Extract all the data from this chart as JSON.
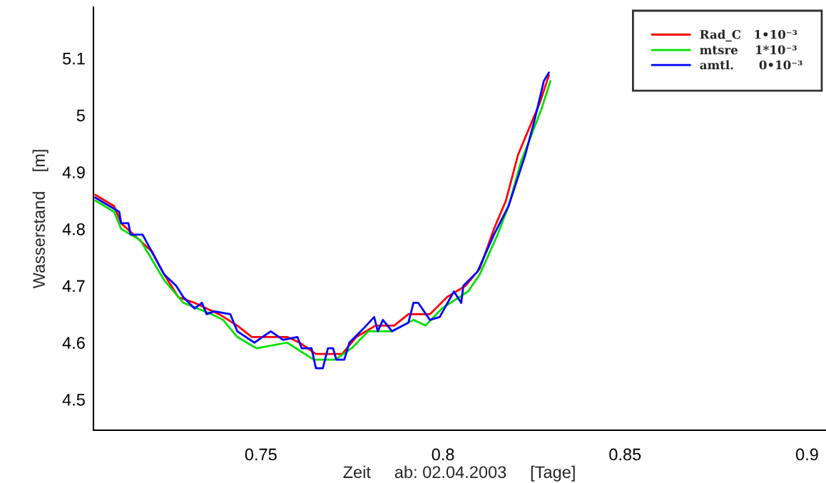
{
  "chart_data": {
    "type": "line",
    "xlabel": "Zeit     ab: 02.04.2003     [Tage]",
    "ylabel": "Wasserstand    [m]",
    "xlim": [
      0.704,
      0.905
    ],
    "ylim": [
      4.446,
      5.19
    ],
    "xticks": [
      0.75,
      0.8,
      0.85,
      0.9
    ],
    "yticks": [
      4.5,
      4.6,
      4.7,
      4.8,
      4.9,
      5,
      5.1
    ],
    "grid": false,
    "legend": "top right",
    "marker": "none",
    "line_style": "solid",
    "series": [
      {
        "name": "Rad_C   1•10⁻³",
        "color": "#ff0000",
        "x": [
          0.7045,
          0.7097,
          0.7116,
          0.7201,
          0.7234,
          0.7273,
          0.7318,
          0.7385,
          0.7435,
          0.7475,
          0.7572,
          0.7606,
          0.7651,
          0.7723,
          0.7762,
          0.7815,
          0.7866,
          0.7905,
          0.7964,
          0.8011,
          0.8062,
          0.8101,
          0.814,
          0.8173,
          0.8206,
          0.8232,
          0.8265,
          0.8291
        ],
        "values": [
          4.86,
          4.84,
          4.81,
          4.76,
          4.72,
          4.68,
          4.67,
          4.65,
          4.63,
          4.61,
          4.61,
          4.6,
          4.58,
          4.58,
          4.61,
          4.63,
          4.63,
          4.65,
          4.65,
          4.68,
          4.7,
          4.73,
          4.8,
          4.85,
          4.93,
          4.97,
          5.02,
          5.07
        ]
      },
      {
        "name": "mtsre    1*10⁻³",
        "color": "#00e000",
        "x": [
          0.7045,
          0.7097,
          0.7116,
          0.7169,
          0.7234,
          0.7287,
          0.7365,
          0.7396,
          0.7435,
          0.7488,
          0.7572,
          0.7645,
          0.7704,
          0.7749,
          0.7795,
          0.786,
          0.7919,
          0.7952,
          0.7997,
          0.8069,
          0.8101,
          0.815,
          0.818,
          0.8215,
          0.824,
          0.827,
          0.8295
        ],
        "values": [
          4.85,
          4.83,
          4.8,
          4.78,
          4.71,
          4.67,
          4.65,
          4.64,
          4.61,
          4.59,
          4.6,
          4.57,
          4.57,
          4.59,
          4.62,
          4.62,
          4.64,
          4.63,
          4.66,
          4.69,
          4.72,
          4.79,
          4.84,
          4.92,
          4.96,
          5.01,
          5.06
        ]
      },
      {
        "name": "amtl.      0•10⁻³",
        "color": "#0000ff",
        "x": [
          0.7045,
          0.7111,
          0.7116,
          0.7136,
          0.7142,
          0.7175,
          0.7234,
          0.7267,
          0.7287,
          0.7318,
          0.7338,
          0.7351,
          0.7371,
          0.7416,
          0.7435,
          0.7482,
          0.7527,
          0.7561,
          0.76,
          0.7612,
          0.7639,
          0.7651,
          0.767,
          0.7684,
          0.7698,
          0.7707,
          0.7729,
          0.7743,
          0.7782,
          0.7811,
          0.7821,
          0.7835,
          0.786,
          0.7905,
          0.7919,
          0.7932,
          0.7964,
          0.7991,
          0.803,
          0.805,
          0.8056,
          0.8095,
          0.814,
          0.818,
          0.8226,
          0.8251,
          0.8277,
          0.8291
        ],
        "values": [
          4.855,
          4.83,
          4.81,
          4.81,
          4.79,
          4.79,
          4.72,
          4.7,
          4.68,
          4.66,
          4.67,
          4.65,
          4.655,
          4.65,
          4.62,
          4.6,
          4.62,
          4.605,
          4.61,
          4.59,
          4.59,
          4.555,
          4.555,
          4.59,
          4.59,
          4.57,
          4.57,
          4.6,
          4.625,
          4.645,
          4.62,
          4.64,
          4.62,
          4.635,
          4.67,
          4.67,
          4.64,
          4.645,
          4.69,
          4.67,
          4.7,
          4.725,
          4.79,
          4.84,
          4.93,
          4.99,
          5.06,
          5.075
        ]
      }
    ]
  }
}
